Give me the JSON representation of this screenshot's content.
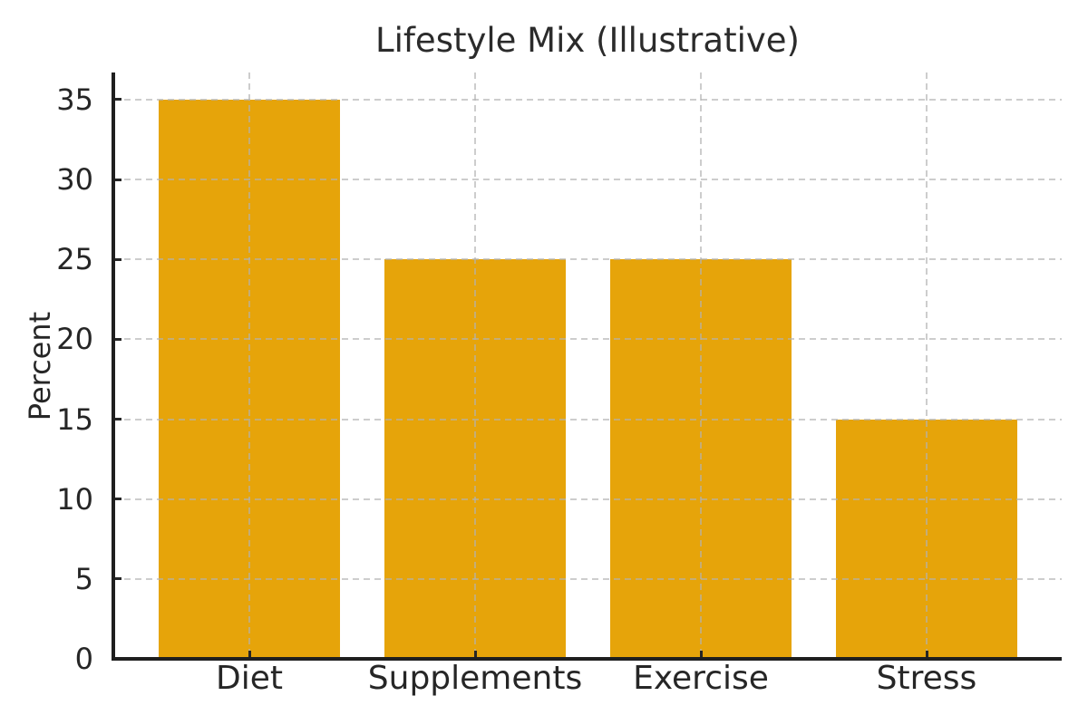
{
  "chart_data": {
    "type": "bar",
    "title": "Lifestyle Mix (Illustrative)",
    "categories": [
      "Diet",
      "Supplements",
      "Exercise",
      "Stress"
    ],
    "values": [
      35,
      25,
      25,
      15
    ],
    "xlabel": "",
    "ylabel": "Percent",
    "ylim": [
      0,
      36.7
    ],
    "yticks": [
      0,
      5,
      10,
      15,
      20,
      25,
      30,
      35
    ],
    "legend": "none",
    "grid": {
      "visible": true,
      "style": "dashed",
      "axes": "both",
      "drawn_above_bars": true
    }
  },
  "colors": {
    "bar": "#E6A40A",
    "grid": "#B2B2B2",
    "axis": "#1F1F1F",
    "text": "#262626",
    "background": "#FFFFFF"
  }
}
